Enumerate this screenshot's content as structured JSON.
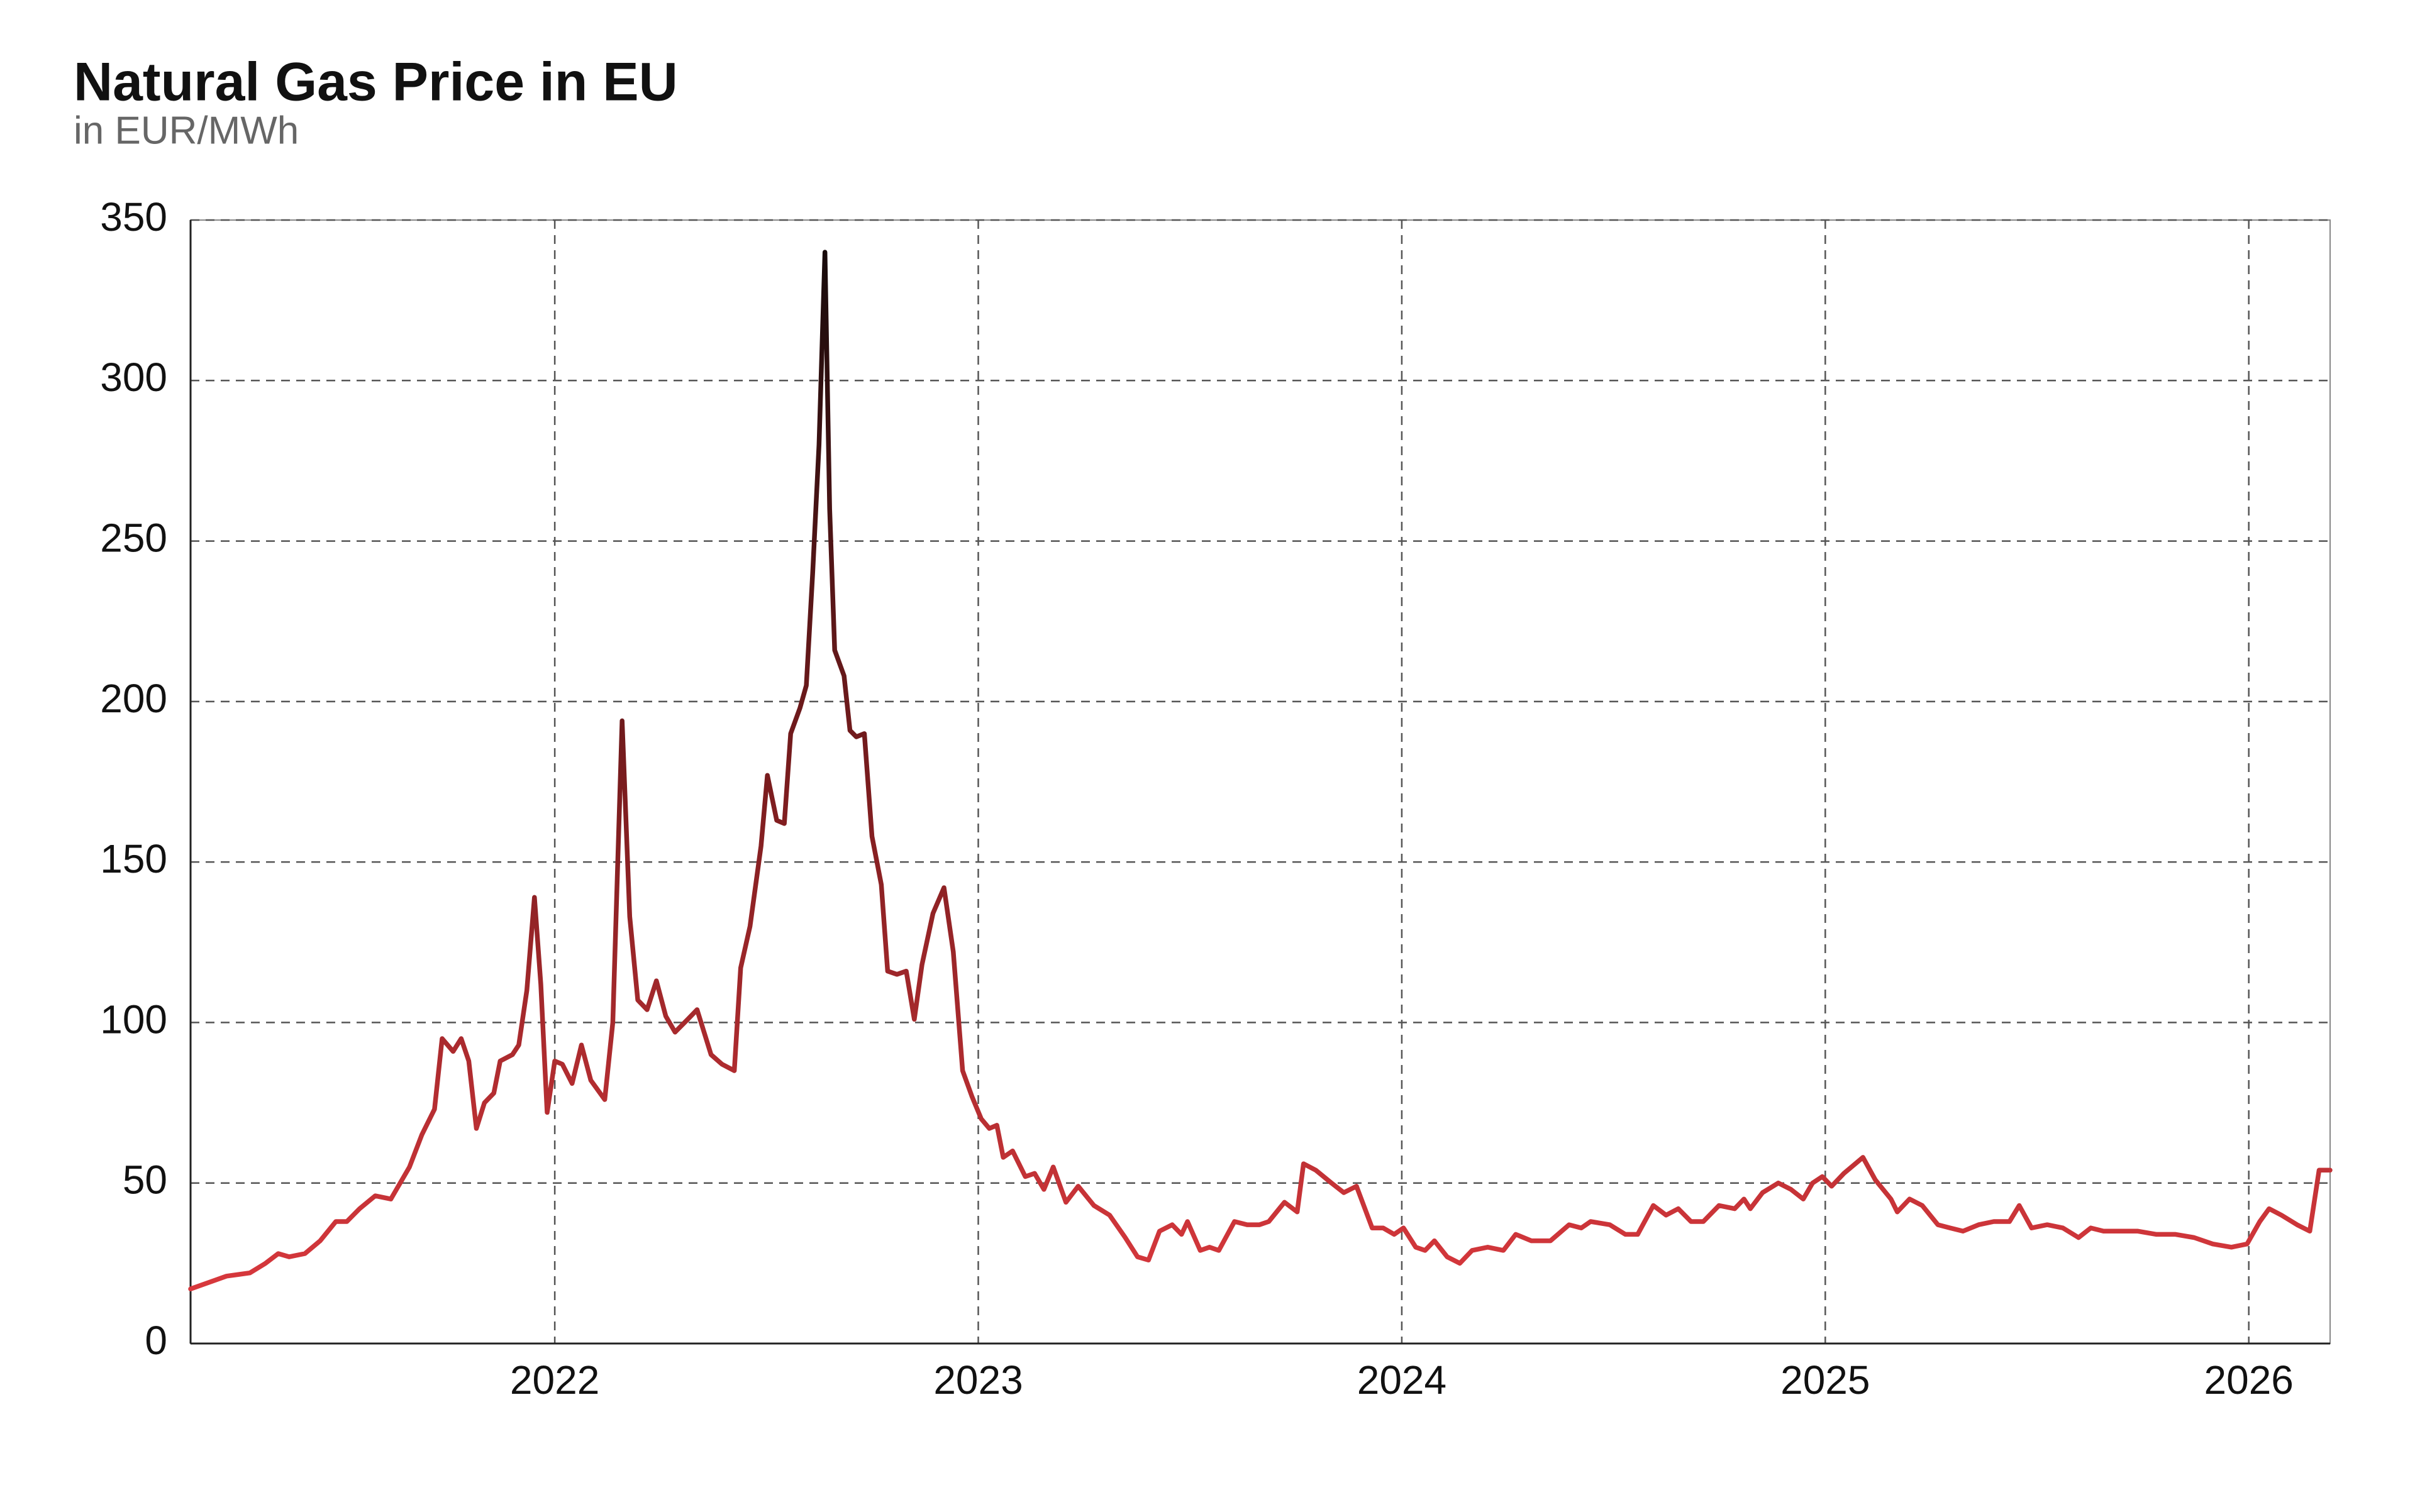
{
  "chart_data": {
    "type": "line",
    "title": "Natural Gas Price in EU",
    "subtitle": "in EUR/MWh",
    "x": [
      2021.14,
      2021.225,
      2021.28,
      2021.317,
      2021.347,
      2021.373,
      2021.41,
      2021.446,
      2021.483,
      2021.509,
      2021.539,
      2021.576,
      2021.613,
      2021.657,
      2021.686,
      2021.716,
      2021.734,
      2021.76,
      2021.779,
      2021.797,
      2021.815,
      2021.834,
      2021.856,
      2021.871,
      2021.9,
      2021.915,
      2021.934,
      2021.952,
      2021.967,
      2021.982,
      2022.0,
      2022.018,
      2022.041,
      2022.063,
      2022.085,
      2022.118,
      2022.137,
      2022.159,
      2022.177,
      2022.196,
      2022.218,
      2022.24,
      2022.262,
      2022.284,
      2022.314,
      2022.336,
      2022.369,
      2022.395,
      2022.424,
      2022.439,
      2022.461,
      2022.487,
      2022.502,
      2022.524,
      2022.542,
      2022.557,
      2022.579,
      2022.594,
      2022.609,
      2022.624,
      2022.638,
      2022.649,
      2022.661,
      2022.683,
      2022.697,
      2022.712,
      2022.731,
      2022.749,
      2022.771,
      2022.786,
      2022.808,
      2022.83,
      2022.849,
      2022.867,
      2022.893,
      2022.919,
      2022.941,
      2022.963,
      2022.985,
      2023.007,
      2023.026,
      2023.044,
      2023.059,
      2023.081,
      2023.111,
      2023.133,
      2023.155,
      2023.177,
      2023.207,
      2023.236,
      2023.273,
      2023.31,
      2023.347,
      2023.376,
      2023.402,
      2023.428,
      2023.458,
      2023.48,
      2023.494,
      2023.524,
      2023.546,
      2023.568,
      2023.605,
      2023.635,
      2023.664,
      2023.686,
      2023.723,
      2023.753,
      2023.768,
      2023.797,
      2023.834,
      2023.863,
      2023.893,
      2023.93,
      2023.956,
      2023.982,
      2024.004,
      2024.033,
      2024.055,
      2024.077,
      2024.107,
      2024.137,
      2024.166,
      2024.203,
      2024.24,
      2024.269,
      2024.306,
      2024.351,
      2024.395,
      2024.424,
      2024.446,
      2024.491,
      2024.528,
      2024.557,
      2024.594,
      2024.624,
      2024.653,
      2024.683,
      2024.712,
      2024.749,
      2024.786,
      2024.808,
      2024.823,
      2024.852,
      2024.889,
      2024.919,
      2024.948,
      2024.97,
      2024.993,
      2025.015,
      2025.044,
      2025.089,
      2025.118,
      2025.155,
      2025.17,
      2025.199,
      2025.229,
      2025.266,
      2025.295,
      2025.325,
      2025.362,
      2025.398,
      2025.435,
      2025.458,
      2025.487,
      2025.524,
      2025.561,
      2025.598,
      2025.627,
      2025.657,
      2025.694,
      2025.738,
      2025.782,
      2025.827,
      2025.871,
      2025.915,
      2025.959,
      2025.996,
      2026.026,
      2026.048,
      2026.077,
      2026.114,
      2026.144,
      2026.166,
      2026.192
    ],
    "values": [
      17,
      21,
      22,
      25,
      28,
      27,
      28,
      32,
      38,
      38,
      42,
      46,
      45,
      55,
      65,
      73,
      95,
      91,
      95,
      88,
      67,
      75,
      78,
      88,
      90,
      93,
      110,
      139,
      112,
      72,
      88,
      87,
      81,
      93,
      82,
      76,
      100,
      194,
      133,
      107,
      104,
      113,
      102,
      97,
      101,
      104,
      90,
      87,
      85,
      117,
      130,
      155,
      177,
      163,
      162,
      190,
      198,
      205,
      240,
      280,
      340,
      260,
      216,
      208,
      191,
      189,
      190,
      158,
      143,
      116,
      115,
      116,
      101,
      118,
      134,
      142,
      122,
      85,
      77,
      70,
      67,
      68,
      58,
      60,
      52,
      53,
      48,
      55,
      44,
      49,
      43,
      40,
      33,
      27,
      26,
      35,
      37,
      34,
      38,
      29,
      30,
      29,
      38,
      37,
      37,
      38,
      44,
      41,
      56,
      54,
      50,
      47,
      49,
      36,
      36,
      34,
      36,
      30,
      29,
      32,
      27,
      25,
      29,
      30,
      29,
      34,
      32,
      32,
      37,
      36,
      38,
      37,
      34,
      34,
      43,
      40,
      42,
      38,
      38,
      43,
      42,
      45,
      42,
      47,
      50,
      48,
      45,
      50,
      52,
      49,
      53,
      58,
      51,
      45,
      41,
      45,
      43,
      37,
      36,
      35,
      37,
      38,
      38,
      43,
      36,
      37,
      36,
      33,
      36,
      35,
      35,
      35,
      34,
      34,
      33,
      31,
      30,
      31,
      38,
      42,
      40,
      37,
      35,
      54,
      54
    ],
    "line_colors": [
      "#e23b40",
      "#7a1c1e",
      "#120a0a"
    ],
    "xlim": [
      2021.14,
      2026.192
    ],
    "xticks": [
      2022,
      2023,
      2024,
      2025,
      2026
    ],
    "ylim": [
      0,
      350
    ],
    "yticks": [
      0,
      50,
      100,
      150,
      200,
      250,
      300,
      350
    ],
    "grid": true
  }
}
